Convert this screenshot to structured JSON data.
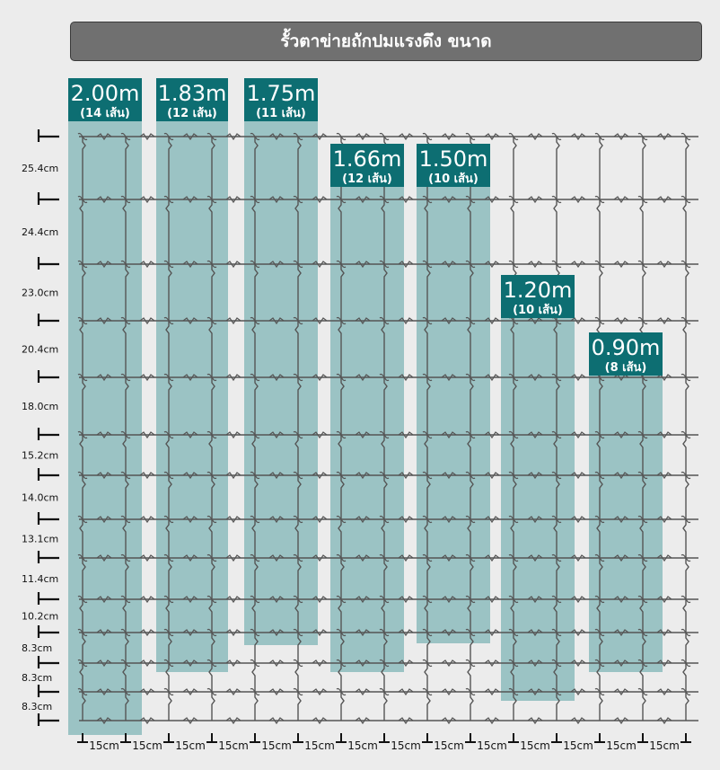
{
  "title": "รั้วตาข่ายถักปมแรงดึง ขนาด",
  "colors": {
    "panel": "#4a9a9c",
    "label_bg": "#0d6e72",
    "wire": "#555555",
    "title_bg": "#707070"
  },
  "panels": [
    {
      "height": "2.00m",
      "strands": "(14 เส้น)"
    },
    {
      "height": "1.83m",
      "strands": "(12 เส้น)"
    },
    {
      "height": "1.75m",
      "strands": "(11 เส้น)"
    },
    {
      "height": "1.66m",
      "strands": "(12 เส้น)"
    },
    {
      "height": "1.50m",
      "strands": "(10 เส้น)"
    },
    {
      "height": "1.20m",
      "strands": "(10 เส้น)"
    },
    {
      "height": "0.90m",
      "strands": "(8 เส้น)"
    }
  ],
  "wire_spacings": [
    "25.4cm",
    "24.4cm",
    "23.0cm",
    "20.4cm",
    "18.0cm",
    "15.2cm",
    "14.0cm",
    "13.1cm",
    "11.4cm",
    "10.2cm",
    "8.3cm",
    "8.3cm",
    "8.3cm"
  ],
  "post_spacings": [
    "15cm",
    "15cm",
    "15cm",
    "15cm",
    "15cm",
    "15cm",
    "15cm",
    "15cm",
    "15cm",
    "15cm",
    "15cm",
    "15cm",
    "15cm",
    "15cm"
  ]
}
